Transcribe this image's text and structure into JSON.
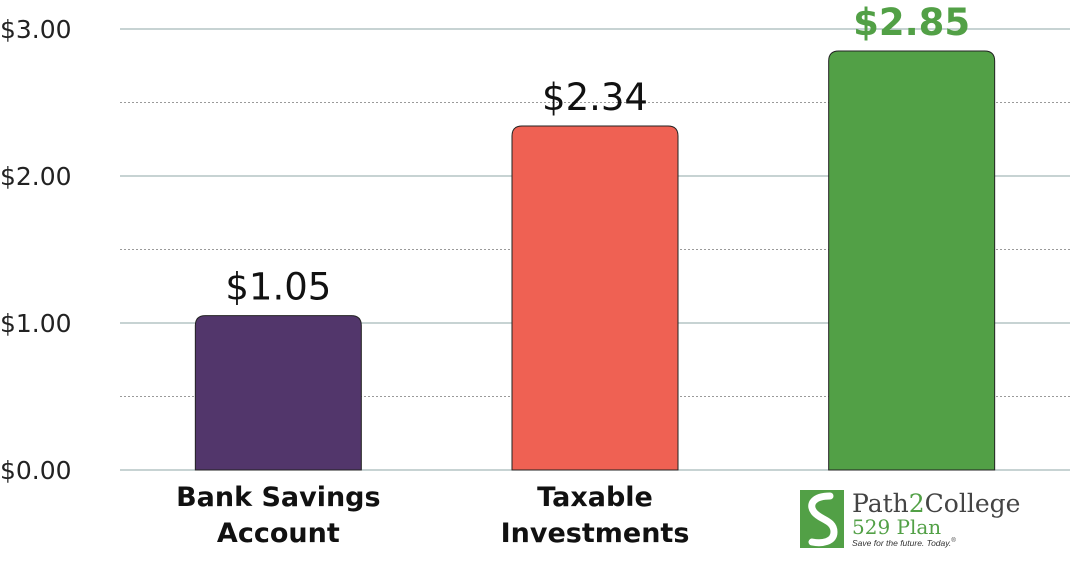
{
  "chart_data": {
    "type": "bar",
    "categories": [
      "Bank Savings Account",
      "Taxable Investments",
      "Path2College 529 Plan"
    ],
    "category_lines": [
      [
        "Bank Savings",
        "Account"
      ],
      [
        "Taxable",
        "Investments"
      ],
      []
    ],
    "values": [
      1.05,
      2.34,
      2.85
    ],
    "value_labels": [
      "$1.05",
      "$2.34",
      "$2.85"
    ],
    "bar_colors": [
      "#52366b",
      "#ef6153",
      "#52a046"
    ],
    "highlight_index": 2,
    "highlight_color": "#52a046",
    "ylim": [
      0,
      3
    ],
    "yticks": [
      0,
      1,
      2,
      3
    ],
    "ytick_labels": [
      "$0.00",
      "$1.00",
      "$2.00",
      "$3.00"
    ],
    "grid": true,
    "title": "",
    "xlabel": "",
    "ylabel": ""
  },
  "logo": {
    "icon": "path2college-s-icon",
    "name": "Path2College",
    "plan": "529 Plan",
    "tagline": "Save for the future. Today.",
    "registered": "®",
    "colors": {
      "green": "#52a046",
      "gray": "#444444"
    }
  }
}
